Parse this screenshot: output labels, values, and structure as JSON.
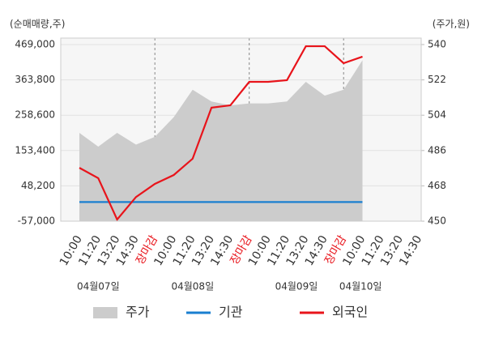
{
  "chart_data": {
    "type": "line",
    "y_label": "(순매매량,주)",
    "y2_label": "(주가,원)",
    "categories": [
      "10:00",
      "11:20",
      "13:20",
      "14:30",
      "장마감",
      "10:00",
      "11:20",
      "13:20",
      "14:30",
      "장마감",
      "10:00",
      "11:20",
      "13:20",
      "14:30",
      "장마감",
      "10:00",
      "11:20",
      "13:20",
      "14:30"
    ],
    "dates": [
      "04월07일",
      "04월08일",
      "04월09일",
      "04월10일"
    ],
    "ylim": [
      -57000,
      469000
    ],
    "yticks": [
      {
        "value": 469000,
        "label": "469,000"
      },
      {
        "value": 363800,
        "label": "363,800"
      },
      {
        "value": 258600,
        "label": "258,600"
      },
      {
        "value": 153400,
        "label": "153,400"
      },
      {
        "value": 48200,
        "label": "48,200"
      },
      {
        "value": -57000,
        "label": "-57,000"
      }
    ],
    "y2lim": [
      450,
      540
    ],
    "y2ticks": [
      540,
      522,
      504,
      486,
      468,
      450
    ],
    "grid": true,
    "series": [
      {
        "name": "주가",
        "type": "area",
        "axis": "y2",
        "color": "#cccccc",
        "values": [
          495,
          488,
          495,
          489,
          493,
          503,
          517,
          511,
          509,
          510,
          510,
          511,
          521,
          514,
          517,
          532,
          null,
          null,
          null
        ]
      },
      {
        "name": "기관",
        "type": "line",
        "color": "#1a7fd0",
        "values": [
          0,
          0,
          0,
          0,
          0,
          0,
          0,
          0,
          0,
          0,
          0,
          0,
          0,
          0,
          0,
          0,
          null,
          null,
          null
        ]
      },
      {
        "name": "외국인",
        "type": "line",
        "color": "#e8141b",
        "values": [
          102000,
          71000,
          -52000,
          15000,
          54000,
          80500,
          129000,
          281000,
          288000,
          358000,
          358000,
          363000,
          464000,
          464000,
          413500,
          433000,
          null,
          null,
          null
        ]
      }
    ]
  }
}
